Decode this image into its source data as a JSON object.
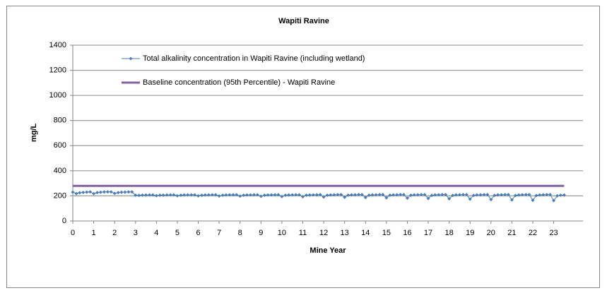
{
  "chart_data": {
    "type": "line",
    "title": "Wapiti Ravine",
    "xlabel": "Mine Year",
    "ylabel": "mg/L",
    "xlim": [
      0,
      24.4
    ],
    "ylim": [
      0,
      1400
    ],
    "xticks": [
      0,
      1,
      2,
      3,
      4,
      5,
      6,
      7,
      8,
      9,
      10,
      11,
      12,
      13,
      14,
      15,
      16,
      17,
      18,
      19,
      20,
      21,
      22,
      23
    ],
    "yticks": [
      0,
      200,
      400,
      600,
      800,
      1000,
      1200,
      1400
    ],
    "grid": true,
    "series": [
      {
        "name": "Total alkalinity concentration in Wapiti Ravine (including wetland)",
        "color": "#4a7ebb",
        "marker": "diamond",
        "x": [
          0,
          0.17,
          0.33,
          0.5,
          0.67,
          0.83,
          1,
          1.17,
          1.33,
          1.5,
          1.67,
          1.83,
          2,
          2.17,
          2.33,
          2.5,
          2.67,
          2.83,
          3,
          3.17,
          3.33,
          3.5,
          3.67,
          3.83,
          4,
          4.17,
          4.33,
          4.5,
          4.67,
          4.83,
          5,
          5.17,
          5.33,
          5.5,
          5.67,
          5.83,
          6,
          6.17,
          6.33,
          6.5,
          6.67,
          6.83,
          7,
          7.17,
          7.33,
          7.5,
          7.67,
          7.83,
          8,
          8.17,
          8.33,
          8.5,
          8.67,
          8.83,
          9,
          9.17,
          9.33,
          9.5,
          9.67,
          9.83,
          10,
          10.17,
          10.33,
          10.5,
          10.67,
          10.83,
          11,
          11.17,
          11.33,
          11.5,
          11.67,
          11.83,
          12,
          12.17,
          12.33,
          12.5,
          12.67,
          12.83,
          13,
          13.17,
          13.33,
          13.5,
          13.67,
          13.83,
          14,
          14.17,
          14.33,
          14.5,
          14.67,
          14.83,
          15,
          15.17,
          15.33,
          15.5,
          15.67,
          15.83,
          16,
          16.17,
          16.33,
          16.5,
          16.67,
          16.83,
          17,
          17.17,
          17.33,
          17.5,
          17.67,
          17.83,
          18,
          18.17,
          18.33,
          18.5,
          18.67,
          18.83,
          19,
          19.17,
          19.33,
          19.5,
          19.67,
          19.83,
          20,
          20.17,
          20.33,
          20.5,
          20.67,
          20.83,
          21,
          21.17,
          21.33,
          21.5,
          21.67,
          21.83,
          22,
          22.17,
          22.33,
          22.5,
          22.67,
          22.83,
          23,
          23.17,
          23.33,
          23.5
        ],
        "values": [
          230,
          218,
          225,
          228,
          230,
          232,
          218,
          226,
          229,
          231,
          232,
          232,
          220,
          226,
          229,
          230,
          231,
          232,
          205,
          204,
          206,
          207,
          207,
          207,
          202,
          205,
          206,
          207,
          208,
          208,
          201,
          205,
          207,
          208,
          208,
          208,
          200,
          205,
          207,
          208,
          209,
          209,
          199,
          205,
          207,
          208,
          209,
          209,
          198,
          205,
          207,
          208,
          209,
          209,
          197,
          205,
          207,
          208,
          209,
          209,
          195,
          205,
          207,
          208,
          209,
          209,
          193,
          205,
          207,
          208,
          209,
          210,
          191,
          205,
          207,
          209,
          210,
          210,
          189,
          205,
          208,
          209,
          210,
          210,
          187,
          205,
          208,
          209,
          210,
          210,
          185,
          205,
          208,
          209,
          210,
          210,
          182,
          205,
          208,
          209,
          210,
          210,
          180,
          204,
          208,
          209,
          210,
          210,
          177,
          204,
          208,
          209,
          210,
          210,
          174,
          204,
          208,
          209,
          210,
          210,
          171,
          204,
          208,
          209,
          210,
          210,
          168,
          203,
          207,
          209,
          210,
          210,
          165,
          203,
          207,
          209,
          210,
          210,
          162,
          200,
          205,
          207
        ]
      },
      {
        "name": "Baseline concentration (95th Percentile) - Wapiti Ravine",
        "color": "#8064a2",
        "x": [
          0,
          23.5
        ],
        "values": [
          280,
          280
        ]
      }
    ]
  }
}
